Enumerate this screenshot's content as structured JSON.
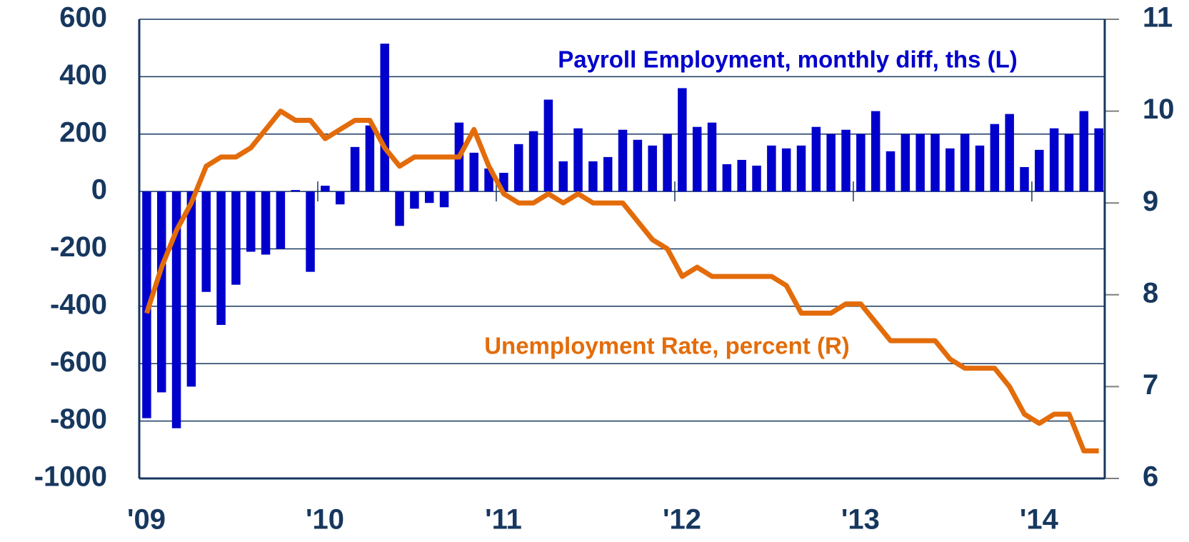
{
  "chart_data": {
    "type": "bar-line",
    "x": [
      0,
      1,
      2,
      3,
      4,
      5,
      6,
      7,
      8,
      9,
      10,
      11,
      12,
      13,
      14,
      15,
      16,
      17,
      18,
      19,
      20,
      21,
      22,
      23,
      24,
      25,
      26,
      27,
      28,
      29,
      30,
      31,
      32,
      33,
      34,
      35,
      36,
      37,
      38,
      39,
      40,
      41,
      42,
      43,
      44,
      45,
      46,
      47,
      48,
      49,
      50,
      51,
      52,
      53,
      54,
      55,
      56,
      57,
      58,
      59,
      60,
      61,
      62,
      63,
      64
    ],
    "xlim": [
      -0.5,
      64.4
    ],
    "xticks": [
      {
        "value": -0.5,
        "label": "'09"
      },
      {
        "value": 11.5,
        "label": "'10"
      },
      {
        "value": 23.5,
        "label": "'11"
      },
      {
        "value": 35.5,
        "label": "'12"
      },
      {
        "value": 47.5,
        "label": "'13"
      },
      {
        "value": 59.5,
        "label": "'14"
      }
    ],
    "ylim": [
      -1000,
      600
    ],
    "yticks": [
      -1000,
      -800,
      -600,
      -400,
      -200,
      0,
      200,
      400,
      600
    ],
    "y2lim": [
      6,
      11
    ],
    "y2ticks": [
      6,
      7,
      8,
      9,
      10,
      11
    ],
    "grid": true,
    "series": [
      {
        "name": "Payroll Employment, monthly diff, ths (L)",
        "color": "#0000cc",
        "type": "bar",
        "axis": "y",
        "values": [
          -790,
          -700,
          -825,
          -680,
          -350,
          -465,
          -325,
          -210,
          -220,
          -200,
          5,
          -280,
          20,
          -45,
          155,
          230,
          515,
          -120,
          -60,
          -40,
          -55,
          240,
          135,
          80,
          65,
          165,
          210,
          320,
          105,
          220,
          105,
          120,
          215,
          180,
          160,
          200,
          360,
          225,
          240,
          95,
          110,
          90,
          160,
          150,
          160,
          225,
          200,
          215,
          200,
          280,
          140,
          200,
          200,
          200,
          150,
          200,
          160,
          235,
          270,
          85,
          145,
          220,
          200,
          280,
          220
        ]
      },
      {
        "name": "Unemployment Rate, percent (R)",
        "color": "#e36c0a",
        "type": "line",
        "axis": "y2",
        "values": [
          7.8,
          8.3,
          8.7,
          9.0,
          9.4,
          9.5,
          9.5,
          9.6,
          9.8,
          10.0,
          9.9,
          9.9,
          9.7,
          9.8,
          9.9,
          9.9,
          9.6,
          9.4,
          9.5,
          9.5,
          9.5,
          9.5,
          9.8,
          9.4,
          9.1,
          9.0,
          9.0,
          9.1,
          9.0,
          9.1,
          9.0,
          9.0,
          9.0,
          8.8,
          8.6,
          8.5,
          8.2,
          8.3,
          8.2,
          8.2,
          8.2,
          8.2,
          8.2,
          8.1,
          7.8,
          7.8,
          7.8,
          7.9,
          7.9,
          7.7,
          7.5,
          7.5,
          7.5,
          7.5,
          7.3,
          7.2,
          7.2,
          7.2,
          7.0,
          6.7,
          6.6,
          6.7,
          6.7,
          6.3,
          6.3
        ]
      }
    ]
  }
}
